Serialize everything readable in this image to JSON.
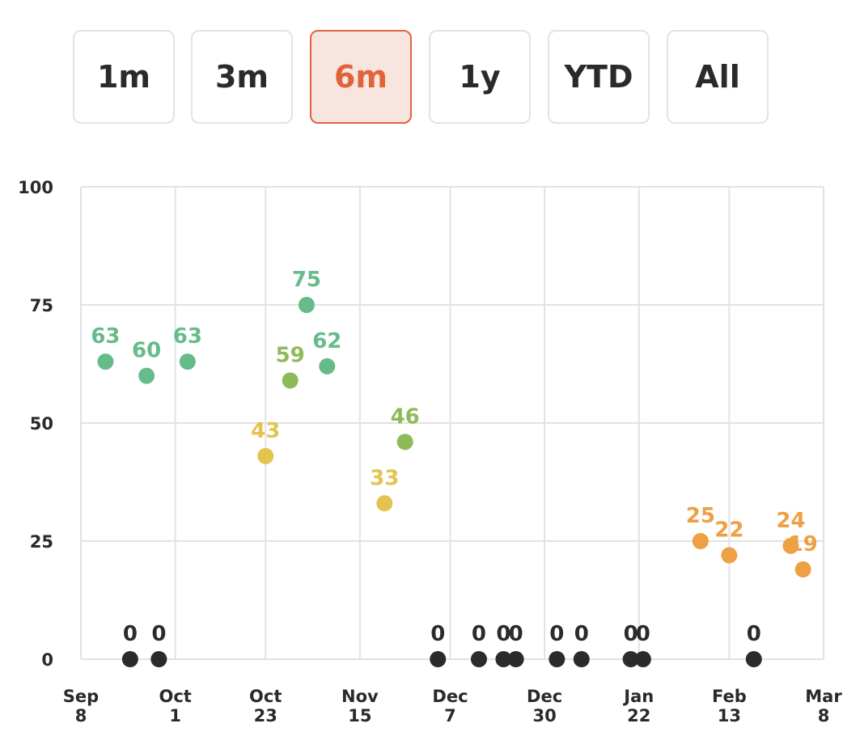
{
  "range_selector": {
    "options": [
      "1m",
      "3m",
      "6m",
      "1y",
      "YTD",
      "All"
    ],
    "selected": "6m"
  },
  "colors": {
    "active_text": "#e0643a",
    "active_bg": "#f8e5df",
    "green": "#66bb8b",
    "light_green": "#8dbb5a",
    "yellow": "#e3c44f",
    "orange": "#eea044",
    "zero": "#2b2b2b",
    "grid": "#e2e2e2"
  },
  "chart_data": {
    "type": "scatter",
    "ylim": [
      0,
      100
    ],
    "yticks": [
      0,
      25,
      50,
      75,
      100
    ],
    "xlim": [
      "2022-09-08",
      "2023-03-08"
    ],
    "xticks": [
      {
        "date": "2022-09-08",
        "line1": "Sep",
        "line2": "8"
      },
      {
        "date": "2022-10-01",
        "line1": "Oct",
        "line2": "1"
      },
      {
        "date": "2022-10-23",
        "line1": "Oct",
        "line2": "23"
      },
      {
        "date": "2022-11-15",
        "line1": "Nov",
        "line2": "15"
      },
      {
        "date": "2022-12-07",
        "line1": "Dec",
        "line2": "7"
      },
      {
        "date": "2022-12-30",
        "line1": "Dec",
        "line2": "30"
      },
      {
        "date": "2023-01-22",
        "line1": "Jan",
        "line2": "22"
      },
      {
        "date": "2023-02-13",
        "line1": "Feb",
        "line2": "13"
      },
      {
        "date": "2023-03-08",
        "line1": "Mar",
        "line2": "8"
      }
    ],
    "points": [
      {
        "date": "2022-09-14",
        "value": 63,
        "label": "63",
        "color": "green"
      },
      {
        "date": "2022-09-20",
        "value": 0,
        "label": "0",
        "color": "zero"
      },
      {
        "date": "2022-09-24",
        "value": 60,
        "label": "60",
        "color": "green"
      },
      {
        "date": "2022-09-27",
        "value": 0,
        "label": "0",
        "color": "zero"
      },
      {
        "date": "2022-10-04",
        "value": 63,
        "label": "63",
        "color": "green"
      },
      {
        "date": "2022-10-23",
        "value": 43,
        "label": "43",
        "color": "yellow"
      },
      {
        "date": "2022-10-29",
        "value": 59,
        "label": "59",
        "color": "light_green"
      },
      {
        "date": "2022-11-02",
        "value": 75,
        "label": "75",
        "color": "green"
      },
      {
        "date": "2022-11-07",
        "value": 62,
        "label": "62",
        "color": "green"
      },
      {
        "date": "2022-11-21",
        "value": 33,
        "label": "33",
        "color": "yellow"
      },
      {
        "date": "2022-11-26",
        "value": 46,
        "label": "46",
        "color": "light_green"
      },
      {
        "date": "2022-12-04",
        "value": 0,
        "label": "0",
        "color": "zero"
      },
      {
        "date": "2022-12-14",
        "value": 0,
        "label": "0",
        "color": "zero"
      },
      {
        "date": "2022-12-20",
        "value": 0,
        "label": "0",
        "color": "zero"
      },
      {
        "date": "2022-12-23",
        "value": 0,
        "label": "0",
        "color": "zero"
      },
      {
        "date": "2023-01-02",
        "value": 0,
        "label": "0",
        "color": "zero"
      },
      {
        "date": "2023-01-08",
        "value": 0,
        "label": "0",
        "color": "zero"
      },
      {
        "date": "2023-01-20",
        "value": 0,
        "label": "0",
        "color": "zero"
      },
      {
        "date": "2023-01-23",
        "value": 0,
        "label": "0",
        "color": "zero"
      },
      {
        "date": "2023-02-06",
        "value": 25,
        "label": "25",
        "color": "orange"
      },
      {
        "date": "2023-02-13",
        "value": 22,
        "label": "22",
        "color": "orange"
      },
      {
        "date": "2023-02-19",
        "value": 0,
        "label": "0",
        "color": "zero"
      },
      {
        "date": "2023-02-28",
        "value": 24,
        "label": "24",
        "color": "orange"
      },
      {
        "date": "2023-03-03",
        "value": 19,
        "label": "19",
        "color": "orange"
      }
    ]
  }
}
